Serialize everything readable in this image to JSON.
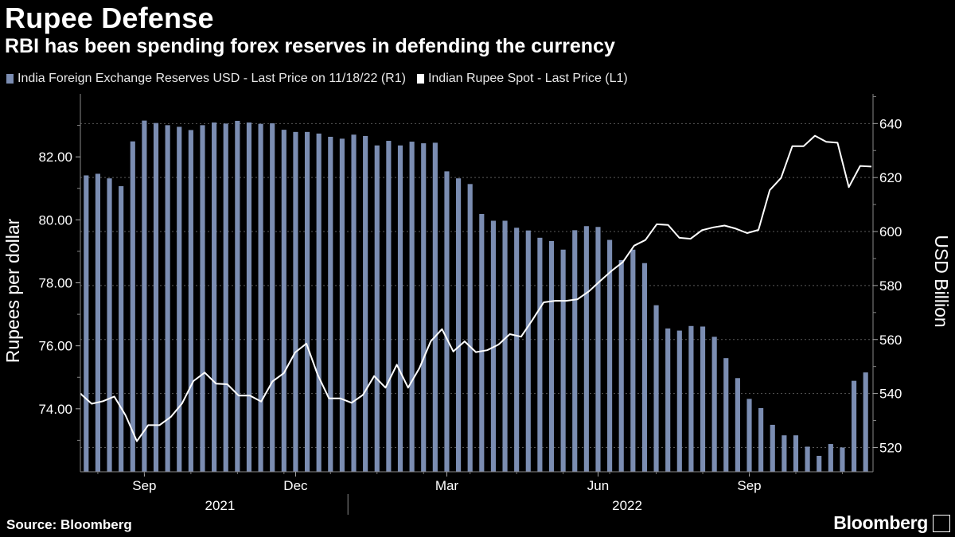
{
  "title": "Rupee Defense",
  "subtitle": "RBI has been spending forex reserves in defending the currency",
  "source": "Source: Bloomberg",
  "brand": "Bloomberg",
  "chart_data": {
    "type": "bar+line",
    "title": "Rupee Defense",
    "subtitle": "RBI has been spending forex reserves in defending the currency",
    "left_axis": {
      "label": "Rupees per dollar",
      "range": [
        72.0,
        84.0
      ],
      "ticks": [
        "82.00",
        "80.00",
        "78.00",
        "76.00",
        "74.00"
      ],
      "tick_values": [
        82,
        80,
        78,
        76,
        74
      ]
    },
    "right_axis": {
      "label": "USD Billion",
      "range": [
        511.0,
        651.0
      ],
      "ticks": [
        "640",
        "620",
        "600",
        "580",
        "560",
        "540",
        "520"
      ],
      "tick_values": [
        640,
        620,
        600,
        580,
        560,
        540,
        520
      ]
    },
    "x_axis": {
      "month_labels": [
        {
          "label": "Sep",
          "index": 5
        },
        {
          "label": "Dec",
          "index": 18
        },
        {
          "label": "Mar",
          "index": 31
        },
        {
          "label": "Jun",
          "index": 44
        },
        {
          "label": "Sep",
          "index": 57
        }
      ],
      "year_labels": [
        {
          "label": "2021",
          "index": 11.5
        },
        {
          "label": "2022",
          "index": 46.5
        }
      ],
      "year_separator_index": 22.5
    },
    "legend": [
      {
        "name": "India Foreign Exchange Reserves USD - Last Price on 11/18/22 (R1)",
        "color": "#7b8db2"
      },
      {
        "name": "Indian Rupee Spot - Last Price (L1)",
        "color": "#ffffff"
      }
    ],
    "series": [
      {
        "name": "India Foreign Exchange Reserves USD",
        "type": "bar",
        "axis": "right",
        "color": "#7b8db2",
        "values": [
          620.8,
          621.4,
          619.7,
          616.8,
          633.4,
          641.1,
          640.2,
          639.4,
          638.8,
          637.6,
          639.4,
          640.4,
          640.0,
          641.0,
          640.4,
          639.9,
          640.1,
          637.7,
          636.9,
          636.9,
          636.3,
          635.1,
          634.4,
          635.9,
          635.4,
          631.9,
          633.6,
          631.9,
          633.3,
          632.7,
          632.9,
          622.3,
          619.7,
          617.6,
          606.5,
          604.0,
          604.0,
          601.4,
          600.4,
          597.7,
          596.5,
          593.3,
          600.5,
          602.0,
          601.7,
          596.9,
          589.4,
          593.3,
          588.3,
          572.7,
          564.1,
          563.3,
          565.0,
          564.8,
          561.0,
          553.1,
          545.7,
          538.0,
          534.6,
          528.4,
          524.5,
          524.5,
          520.3,
          516.9,
          521.3,
          520.0,
          544.7,
          547.8
        ]
      },
      {
        "name": "Indian Rupee Spot",
        "type": "line",
        "axis": "left",
        "color": "#ffffff",
        "values": [
          74.48,
          74.16,
          74.24,
          74.39,
          73.79,
          72.97,
          73.48,
          73.48,
          73.74,
          74.17,
          74.88,
          75.15,
          74.8,
          74.78,
          74.42,
          74.42,
          74.23,
          74.87,
          75.13,
          75.79,
          76.07,
          75.08,
          74.33,
          74.33,
          74.19,
          74.44,
          75.04,
          74.67,
          75.4,
          74.67,
          75.29,
          76.14,
          76.53,
          75.82,
          76.14,
          75.8,
          75.86,
          76.04,
          76.37,
          76.29,
          76.82,
          77.38,
          77.43,
          77.43,
          77.48,
          77.73,
          78.06,
          78.38,
          78.66,
          79.18,
          79.36,
          79.86,
          79.84,
          79.43,
          79.4,
          79.67,
          79.76,
          79.82,
          79.72,
          79.58,
          79.68,
          80.94,
          81.33,
          82.34,
          82.34,
          82.67,
          82.48,
          82.45,
          81.04,
          81.71,
          81.69
        ]
      }
    ]
  }
}
